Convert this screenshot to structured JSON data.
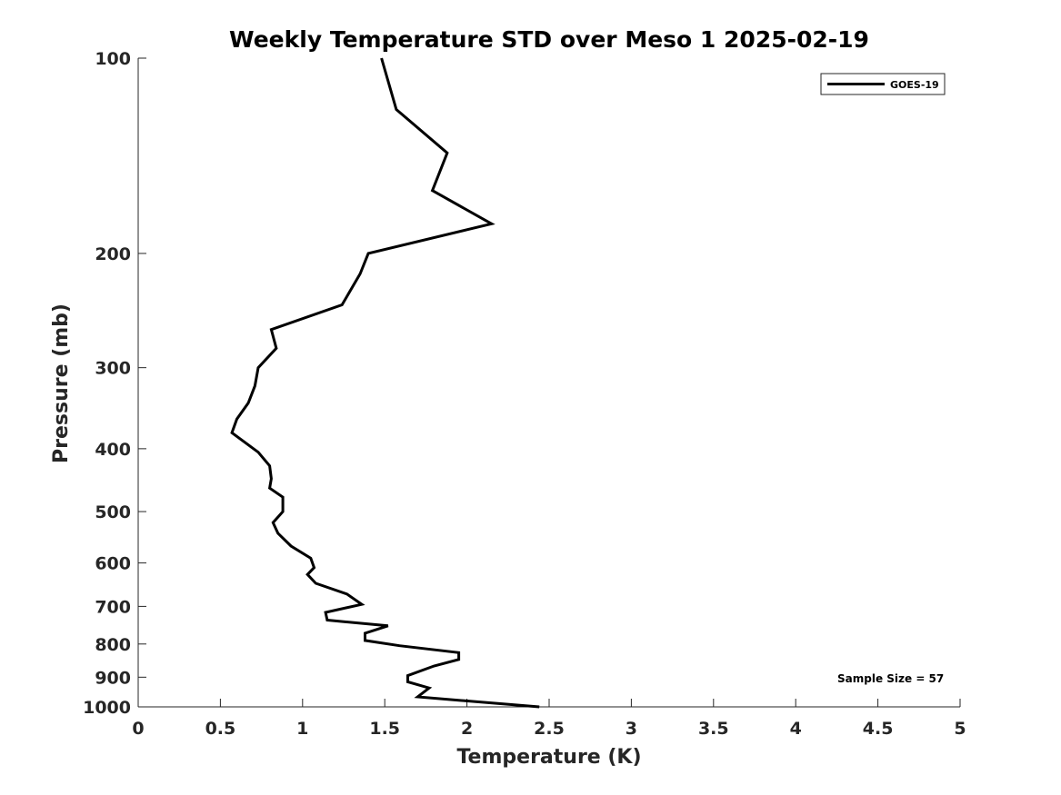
{
  "chart_data": {
    "type": "line",
    "title": "Weekly Temperature STD over Meso 1 2025-02-19",
    "xlabel": "Temperature (K)",
    "ylabel": "Pressure (mb)",
    "xlim": [
      0,
      5
    ],
    "ylim": [
      100,
      1000
    ],
    "y_scale": "log",
    "y_reversed": true,
    "grid": false,
    "xticks": [
      0,
      0.5,
      1,
      1.5,
      2,
      2.5,
      3,
      3.5,
      4,
      4.5,
      5
    ],
    "xtick_labels": [
      "0",
      "0.5",
      "1",
      "1.5",
      "2",
      "2.5",
      "3",
      "3.5",
      "4",
      "4.5",
      "5"
    ],
    "yticks": [
      100,
      200,
      300,
      400,
      500,
      600,
      700,
      800,
      900,
      1000
    ],
    "ytick_labels": [
      "100",
      "200",
      "300",
      "400",
      "500",
      "600",
      "700",
      "800",
      "900",
      "1000"
    ],
    "legend": {
      "location": "top-right",
      "entries": [
        "GOES-19"
      ]
    },
    "annotation": "Sample Size = 57",
    "series": [
      {
        "name": "GOES-19",
        "color": "#000000",
        "points": [
          [
            1.48,
            100
          ],
          [
            1.57,
            120
          ],
          [
            1.88,
            140
          ],
          [
            1.79,
            160
          ],
          [
            2.15,
            180
          ],
          [
            1.4,
            200
          ],
          [
            1.35,
            215
          ],
          [
            1.24,
            240
          ],
          [
            0.81,
            262
          ],
          [
            0.84,
            280
          ],
          [
            0.73,
            300
          ],
          [
            0.71,
            320
          ],
          [
            0.67,
            340
          ],
          [
            0.6,
            360
          ],
          [
            0.57,
            378
          ],
          [
            0.73,
            405
          ],
          [
            0.8,
            425
          ],
          [
            0.81,
            445
          ],
          [
            0.8,
            460
          ],
          [
            0.88,
            475
          ],
          [
            0.88,
            500
          ],
          [
            0.82,
            520
          ],
          [
            0.85,
            540
          ],
          [
            0.93,
            565
          ],
          [
            1.05,
            590
          ],
          [
            1.07,
            610
          ],
          [
            1.03,
            625
          ],
          [
            1.08,
            645
          ],
          [
            1.27,
            670
          ],
          [
            1.36,
            695
          ],
          [
            1.14,
            715
          ],
          [
            1.15,
            735
          ],
          [
            1.52,
            750
          ],
          [
            1.38,
            770
          ],
          [
            1.38,
            790
          ],
          [
            1.59,
            805
          ],
          [
            1.95,
            825
          ],
          [
            1.95,
            845
          ],
          [
            1.8,
            865
          ],
          [
            1.64,
            895
          ],
          [
            1.64,
            915
          ],
          [
            1.77,
            935
          ],
          [
            1.7,
            965
          ],
          [
            2.44,
            1000
          ]
        ]
      }
    ]
  }
}
